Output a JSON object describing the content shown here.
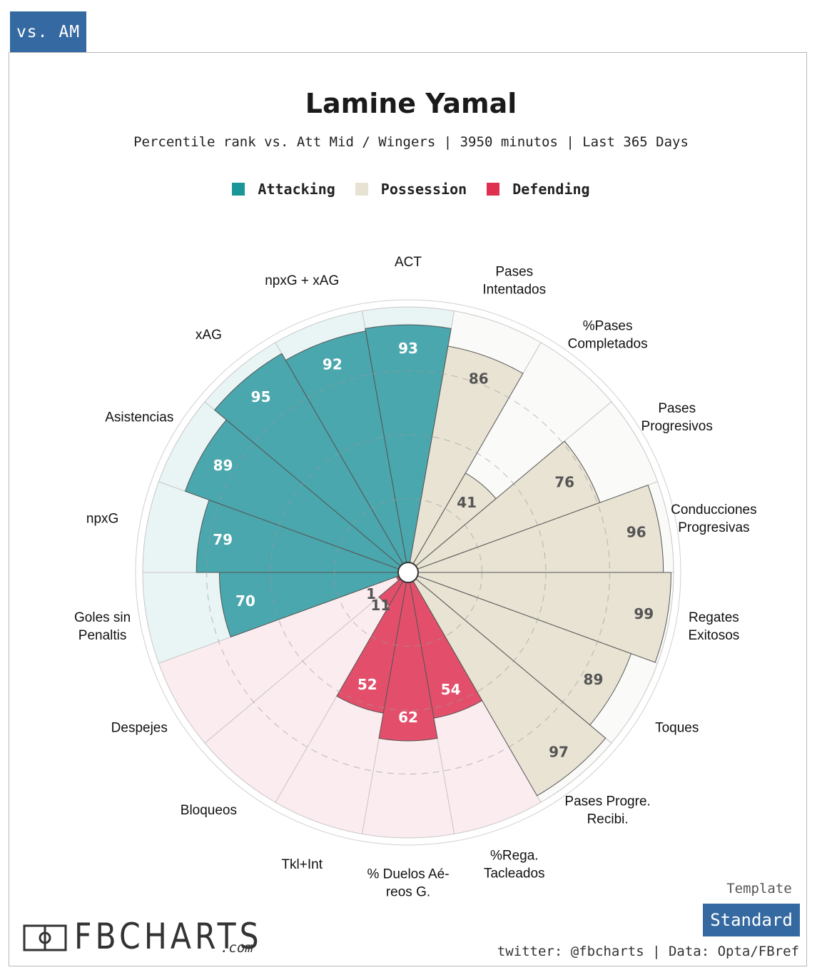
{
  "header": {
    "tag": "vs. AM"
  },
  "legend": {
    "items": [
      {
        "label": "Attacking",
        "color": "#1a9598"
      },
      {
        "label": "Possession",
        "color": "#e8e2d2"
      },
      {
        "label": "Defending",
        "color": "#e0304f"
      }
    ]
  },
  "chart_data": {
    "type": "radar",
    "title": "Lamine Yamal",
    "subtitle": "Percentile rank vs. Att Mid / Wingers | 3950 minutos | Last 365 Days",
    "scale": [
      0,
      100
    ],
    "series": [
      {
        "group": "Attacking",
        "label": "ACT",
        "value": 93
      },
      {
        "group": "Possession",
        "label": "Pases\nIntentados",
        "value": 86
      },
      {
        "group": "Possession",
        "label": "%Pases\nCompletados",
        "value": 41
      },
      {
        "group": "Possession",
        "label": "Pases\nProgresivos",
        "value": 76
      },
      {
        "group": "Possession",
        "label": "Conducciones\nProgresivas",
        "value": 96
      },
      {
        "group": "Possession",
        "label": "Regates\nExitosos",
        "value": 99
      },
      {
        "group": "Possession",
        "label": "Toques",
        "value": 89
      },
      {
        "group": "Possession",
        "label": "Pases Progre.\nRecibi.",
        "value": 97
      },
      {
        "group": "Defending",
        "label": "%Rega.\nTacleados",
        "value": 54
      },
      {
        "group": "Defending",
        "label": "% Duelos Aé-\nreos G.",
        "value": 62
      },
      {
        "group": "Defending",
        "label": "Tkl+Int",
        "value": 52
      },
      {
        "group": "Defending",
        "label": "Bloqueos",
        "value": 11
      },
      {
        "group": "Defending",
        "label": "Despejes",
        "value": 1
      },
      {
        "group": "Attacking",
        "label": "Goles sin\nPenaltis",
        "value": 70
      },
      {
        "group": "Attacking",
        "label": "npxG",
        "value": 79
      },
      {
        "group": "Attacking",
        "label": "Asistencias",
        "value": 89
      },
      {
        "group": "Attacking",
        "label": "xAG",
        "value": 95
      },
      {
        "group": "Attacking",
        "label": "npxG + xAG",
        "value": 92
      }
    ],
    "colors": {
      "Attacking": {
        "fill": "#4aa7ad",
        "bg": "#e9f4f4",
        "text": "#ffffff"
      },
      "Possession": {
        "fill": "#e8e3d3",
        "bg": "#fafaf8",
        "text": "#555555"
      },
      "Defending": {
        "fill": "#e34f6b",
        "bg": "#fbecef",
        "text": "#ffffff"
      }
    }
  },
  "footer": {
    "template_label": "Template",
    "template_value": "Standard",
    "credits": "twitter: @fbcharts | Data: Opta/FBref",
    "logo_text": "FBCHARTS",
    "logo_suffix": ".com"
  }
}
